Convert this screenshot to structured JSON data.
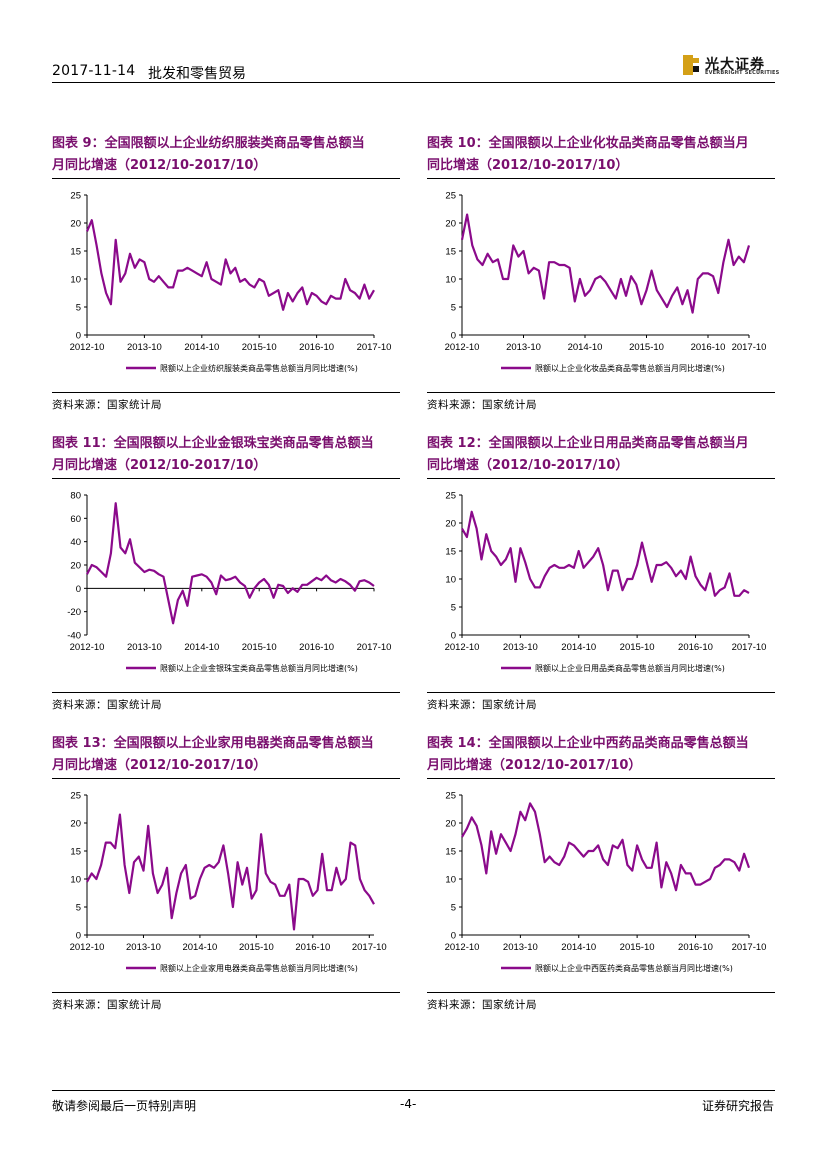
{
  "header": {
    "date": "2017-11-14",
    "title": "批发和零售贸易",
    "logo_cn": "光大证券",
    "logo_en": "EVERBRIGHT SECURITIES"
  },
  "footer": {
    "left": "敬请参阅最后一页特别声明",
    "center": "-4-",
    "right": "证券研究报告"
  },
  "colors": {
    "series": "#8b0a8b",
    "title": "#7a0f6e"
  },
  "panels": [
    {
      "title_line1": "图表 9：全国限额以上企业纺织服装类商品零售总额当",
      "title_line2": "月同比增速（2012/10-2017/10）",
      "source": "资料来源：国家统计局"
    },
    {
      "title_line1": "图表 10：全国限额以上企业化妆品类商品零售总额当月",
      "title_line2": "同比增速（2012/10-2017/10）",
      "source": "资料来源：国家统计局"
    },
    {
      "title_line1": "图表 11：全国限额以上企业金银珠宝类商品零售总额当",
      "title_line2": "月同比增速（2012/10-2017/10）",
      "source": "资料来源：国家统计局"
    },
    {
      "title_line1": "图表 12：全国限额以上企业日用品类商品零售总额当月",
      "title_line2": "同比增速（2012/10-2017/10）",
      "source": "资料来源：国家统计局"
    },
    {
      "title_line1": "图表 13：全国限额以上企业家用电器类商品零售总额当",
      "title_line2": "月同比增速（2012/10-2017/10）",
      "source": "资料来源：国家统计局"
    },
    {
      "title_line1": "图表 14：全国限额以上企业中西药品类商品零售总额当",
      "title_line2": "月同比增速（2012/10-2017/10）",
      "source": "资料来源：国家统计局"
    }
  ],
  "chart_data": [
    {
      "type": "line",
      "x_ticks": [
        "2012-10",
        "2013-10",
        "2014-10",
        "2015-10",
        "2016-10",
        "2017-10"
      ],
      "ylim": [
        0,
        25
      ],
      "y_ticks": [
        0,
        5,
        10,
        15,
        20,
        25
      ],
      "series": [
        {
          "name": "限额以上企业纺织服装类商品零售总额当月同比增速(%)",
          "values": [
            18.5,
            20.5,
            16,
            11,
            7.5,
            5.5,
            17,
            9.5,
            11,
            14.5,
            12,
            13.5,
            13,
            10,
            9.5,
            10.5,
            9.5,
            8.5,
            8.5,
            11.5,
            11.5,
            12,
            11.5,
            11,
            10.5,
            13,
            10,
            9.5,
            9,
            13.5,
            11,
            12,
            9.5,
            10,
            9,
            8.5,
            10,
            9.5,
            7,
            7.5,
            8,
            4.5,
            7.5,
            6,
            7.5,
            8.5,
            5.5,
            7.5,
            7,
            6,
            5.5,
            7,
            6.5,
            6.5,
            10,
            8,
            7.5,
            6.5,
            9,
            6.5,
            8
          ]
        }
      ]
    },
    {
      "type": "line",
      "x_ticks": [
        "2012-10",
        "2013-10",
        "2014-10",
        "2015-10",
        "2016-10",
        "2017-10"
      ],
      "ylim": [
        0,
        25
      ],
      "y_ticks": [
        0,
        5,
        10,
        15,
        20,
        25
      ],
      "series": [
        {
          "name": "限额以上企业化妆品类商品零售总额当月同比增速(%)",
          "values": [
            17,
            21.5,
            16,
            13.5,
            12.5,
            14.5,
            13,
            13.5,
            10,
            10,
            16,
            14,
            15,
            11,
            12,
            11.5,
            6.5,
            13,
            13,
            12.5,
            12.5,
            12,
            6,
            10,
            7,
            8,
            10,
            10.5,
            9.5,
            8,
            6.5,
            10,
            7,
            10.5,
            9,
            5.5,
            8,
            11.5,
            8,
            6.5,
            5,
            7,
            8.5,
            5.5,
            8,
            4,
            10,
            11,
            11,
            10.5,
            7.5,
            13,
            17,
            12.5,
            14,
            13,
            16
          ]
        }
      ]
    },
    {
      "type": "line",
      "x_ticks": [
        "2012-10",
        "2013-10",
        "2014-10",
        "2015-10",
        "2016-10",
        "2017-10"
      ],
      "ylim": [
        -40,
        80
      ],
      "y_ticks": [
        -40,
        -20,
        0,
        20,
        40,
        60,
        80
      ],
      "series": [
        {
          "name": "限额以上企业金银珠宝类商品零售总额当月同比增速(%)",
          "values": [
            12,
            20,
            18,
            14,
            10,
            30,
            73,
            35,
            30,
            42,
            22,
            18,
            14,
            16,
            15,
            12,
            10,
            -10,
            -30,
            -10,
            -2,
            -15,
            10,
            11,
            12,
            10,
            5,
            -5,
            11,
            7,
            8,
            10,
            5,
            2,
            -8,
            0,
            5,
            8,
            3,
            -8,
            3,
            2,
            -4,
            0,
            -3,
            3,
            3,
            6,
            9,
            7,
            11,
            7,
            5,
            8,
            6,
            3,
            -2,
            6,
            7,
            5,
            2
          ]
        }
      ]
    },
    {
      "type": "line",
      "x_ticks": [
        "2012-10",
        "2013-10",
        "2014-10",
        "2015-10",
        "2016-10",
        "2017-10"
      ],
      "ylim": [
        0,
        25
      ],
      "y_ticks": [
        0,
        5,
        10,
        15,
        20,
        25
      ],
      "series": [
        {
          "name": "限额以上企业日用品类商品零售总额当月同比增速(%)",
          "values": [
            19,
            17.5,
            22,
            19,
            13.5,
            18,
            15,
            14,
            12.5,
            13.5,
            15.5,
            9.5,
            15.5,
            13,
            10,
            8.5,
            8.5,
            10.5,
            12,
            12.5,
            12,
            12,
            12.5,
            12,
            15,
            12,
            13,
            14,
            15.5,
            12.5,
            8,
            11.5,
            11.5,
            8,
            10,
            10,
            12.5,
            16.5,
            13,
            9.5,
            12.5,
            12.5,
            13,
            12,
            10.5,
            11.5,
            10,
            14,
            10.5,
            9,
            8,
            11,
            7,
            8,
            8.5,
            11,
            7,
            7,
            8,
            7.5
          ]
        }
      ]
    },
    {
      "type": "line",
      "x_ticks": [
        "2012-10",
        "2013-10",
        "2014-10",
        "2015-10",
        "2016-10",
        "2017-10"
      ],
      "ylim": [
        0,
        25
      ],
      "y_ticks": [
        0,
        5,
        10,
        15,
        20,
        25
      ],
      "series": [
        {
          "name": "限额以上企业家用电器类商品零售总额当月同比增速(%)",
          "values": [
            9.5,
            11,
            10,
            12.5,
            16.5,
            16.5,
            15.5,
            21.5,
            12.5,
            7.5,
            13,
            14,
            11.5,
            19.5,
            11,
            7.5,
            9,
            12,
            3,
            7.5,
            11,
            12.5,
            6.5,
            7,
            10,
            12,
            12.5,
            12,
            13,
            16,
            11,
            5,
            13,
            9,
            12,
            6.5,
            8,
            18,
            11,
            9.5,
            9,
            7,
            7,
            9,
            1,
            10,
            10,
            9.5,
            7,
            8,
            14.5,
            8,
            8,
            12,
            9,
            10,
            16.5,
            16,
            10,
            8,
            7,
            5.5
          ]
        }
      ]
    },
    {
      "type": "line",
      "x_ticks": [
        "2012-10",
        "2013-10",
        "2014-10",
        "2015-10",
        "2016-10",
        "2017-10"
      ],
      "ylim": [
        0,
        25
      ],
      "y_ticks": [
        0,
        5,
        10,
        15,
        20,
        25
      ],
      "series": [
        {
          "name": "限额以上企业中西医药类商品零售总额当月同比增速(%)",
          "values": [
            17.5,
            19,
            21,
            19.5,
            16,
            11,
            18.5,
            14.5,
            18,
            16.5,
            15,
            18,
            22,
            20.5,
            23.5,
            22,
            18,
            13,
            14,
            13,
            12.5,
            14,
            16.5,
            16,
            15,
            14,
            15,
            15,
            16,
            13.5,
            12.5,
            16,
            15.5,
            17,
            12.5,
            11.5,
            16,
            13.5,
            12,
            12,
            16.5,
            8.5,
            13,
            11,
            8,
            12.5,
            11,
            11,
            9,
            9,
            9.5,
            10,
            12,
            12.5,
            13.5,
            13.5,
            13,
            11.5,
            14.5,
            12
          ]
        }
      ]
    }
  ]
}
